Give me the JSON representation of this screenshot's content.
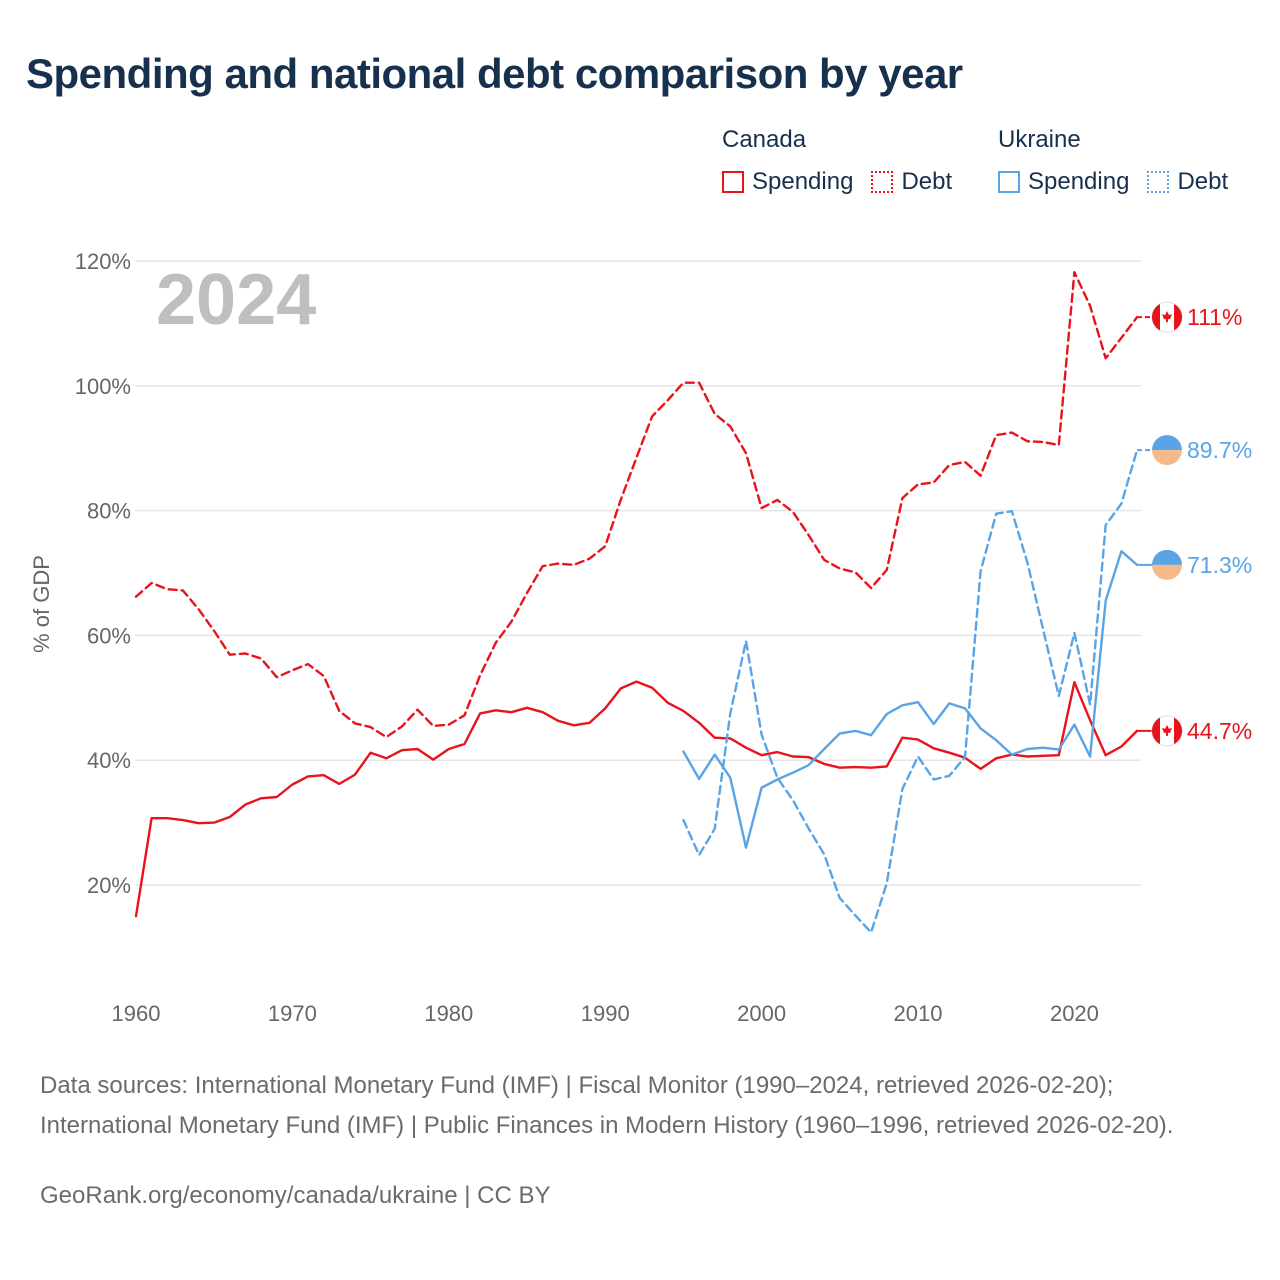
{
  "title": "Spending and national debt comparison by year",
  "legend": {
    "groups": [
      {
        "name": "Canada",
        "items": [
          {
            "label": "Spending",
            "style": "solid",
            "color": "#e8141b"
          },
          {
            "label": "Debt",
            "style": "dotted",
            "color": "#e8141b"
          }
        ]
      },
      {
        "name": "Ukraine",
        "items": [
          {
            "label": "Spending",
            "style": "solid",
            "color": "#5aa4e6"
          },
          {
            "label": "Debt",
            "style": "dotted",
            "color": "#5aa4e6"
          }
        ]
      }
    ]
  },
  "sources": "Data sources: International Monetary Fund (IMF) | Fiscal Monitor (1990–2024, retrieved 2026-02-20); International Monetary Fund (IMF) | Public Finances in Modern History (1960–1996, retrieved 2026-02-20).",
  "credit": "GeoRank.org/economy/canada/ukraine | CC BY",
  "chart_data": {
    "type": "line",
    "title": "Spending and national debt comparison by year",
    "year_label": "2024",
    "ylabel": "% of GDP",
    "xlabel": "",
    "xlim": [
      1960,
      2024
    ],
    "ylim": [
      5,
      120
    ],
    "yticks": [
      20,
      40,
      60,
      80,
      100,
      120
    ],
    "ytick_labels": [
      "20%",
      "40%",
      "60%",
      "80%",
      "100%",
      "120%"
    ],
    "xticks": [
      1960,
      1970,
      1980,
      1990,
      2000,
      2010,
      2020
    ],
    "xtick_labels": [
      "1960",
      "1970",
      "1980",
      "1990",
      "2000",
      "2010",
      "2020"
    ],
    "colors": {
      "canada": "#e8141b",
      "ukraine": "#5aa4e6",
      "grid": "#e6e6e6",
      "axis_text": "#666666",
      "year": "#bfbfbf"
    },
    "series": [
      {
        "name": "Canada Spending",
        "country": "canada",
        "kind": "spending",
        "dashed": false,
        "start_year": 1960,
        "values": [
          15,
          30.7,
          30.7,
          30.4,
          29.9,
          30,
          30.9,
          32.9,
          33.9,
          34.1,
          36.1,
          37.4,
          37.6,
          36.2,
          37.7,
          41.2,
          40.3,
          41.6,
          41.8,
          40.1,
          41.8,
          42.6,
          47.5,
          48,
          47.7,
          48.4,
          47.7,
          46.3,
          45.6,
          46,
          48.3,
          51.5,
          52.6,
          51.6,
          49.2,
          47.9,
          46,
          43.6,
          43.5,
          42,
          40.8,
          41.3,
          40.6,
          40.5,
          39.4,
          38.8,
          38.9,
          38.8,
          39,
          43.6,
          43.3,
          41.9,
          41.2,
          40.4,
          38.6,
          40.3,
          40.9,
          40.6,
          40.7,
          40.8,
          52.5,
          46.4,
          40.8,
          42.2,
          44.7
        ],
        "end_label": "44.7%"
      },
      {
        "name": "Canada Debt",
        "country": "canada",
        "kind": "debt",
        "dashed": true,
        "start_year": 1960,
        "values": [
          66.2,
          68.4,
          67.4,
          67.2,
          64.2,
          60.7,
          56.9,
          57.1,
          56.3,
          53.3,
          54.4,
          55.4,
          53.5,
          47.9,
          45.9,
          45.3,
          43.7,
          45.4,
          48.1,
          45.5,
          45.7,
          47.2,
          53.6,
          58.8,
          62.2,
          66.8,
          71.1,
          71.5,
          71.3,
          72.3,
          74.3,
          81.8,
          88.5,
          95.1,
          97.7,
          100.5,
          100.5,
          95.5,
          93.5,
          89.2,
          80.4,
          81.7,
          79.8,
          76.1,
          72.1,
          70.7,
          70.1,
          67.6,
          70.5,
          82,
          84.2,
          84.5,
          87.3,
          87.8,
          85.6,
          92.1,
          92.5,
          91.1,
          91,
          90.5,
          118.2,
          112.8,
          104.4,
          107.7,
          111
        ],
        "end_label": "111%"
      },
      {
        "name": "Ukraine Spending",
        "country": "ukraine",
        "kind": "spending",
        "dashed": false,
        "start_year": 1995,
        "values": [
          41.4,
          37,
          40.9,
          37.2,
          26,
          35.6,
          36.9,
          38,
          39.2,
          41.8,
          44.3,
          44.7,
          44,
          47.4,
          48.8,
          49.3,
          45.8,
          49.1,
          48.3,
          45.1,
          43.2,
          40.9,
          41.8,
          42,
          41.7,
          45.7,
          40.6,
          65.6,
          73.5,
          71.3
        ],
        "end_label": "71.3%"
      },
      {
        "name": "Ukraine Debt",
        "country": "ukraine",
        "kind": "debt",
        "dashed": true,
        "start_year": 1995,
        "values": [
          30.4,
          24.8,
          29,
          47.5,
          59.1,
          44.1,
          37.2,
          33.6,
          29.1,
          24.9,
          17.9,
          15.1,
          12.4,
          20.3,
          35.4,
          40.6,
          36.9,
          37.5,
          40.5,
          70.3,
          79.5,
          79.9,
          71.6,
          60.9,
          50.3,
          60.4,
          48.9,
          77.7,
          81.1,
          89.7
        ],
        "end_label": "89.7%"
      }
    ]
  }
}
